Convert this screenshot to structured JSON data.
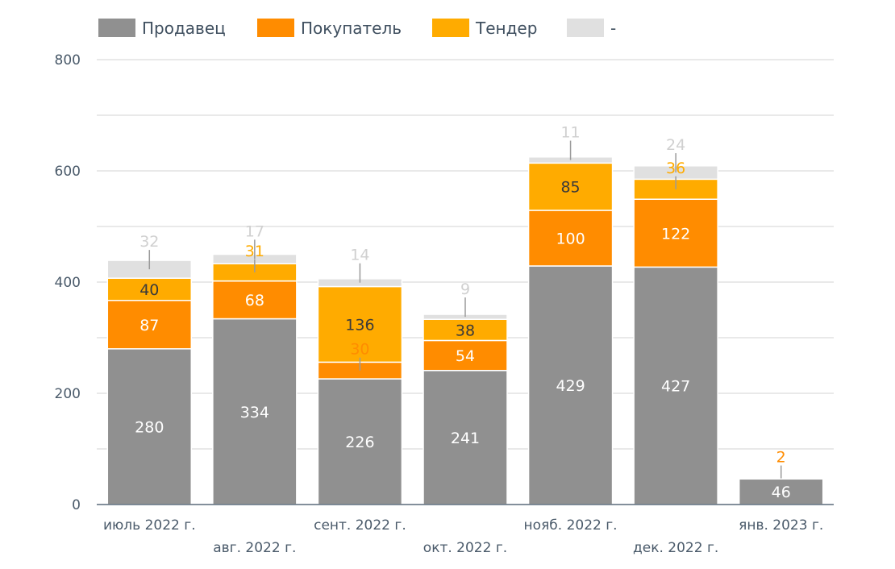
{
  "chart_data": {
    "type": "bar",
    "stacked": true,
    "categories": [
      "июль 2022 г.",
      "авг. 2022 г.",
      "сент. 2022 г.",
      "окт. 2022 г.",
      "нояб. 2022 г.",
      "дек. 2022 г.",
      "янв. 2023 г."
    ],
    "series": [
      {
        "name": "Продавец",
        "color": "#909090",
        "label_color": "#ffffff",
        "values": [
          280,
          334,
          226,
          241,
          429,
          427,
          46
        ]
      },
      {
        "name": "Покупатель",
        "color": "#ff8c00",
        "label_color": "#ffffff",
        "values": [
          87,
          68,
          30,
          54,
          100,
          122,
          2
        ]
      },
      {
        "name": "Тендер",
        "color": "#ffab00",
        "label_color": "#3a3a3a",
        "values": [
          40,
          31,
          136,
          38,
          85,
          36,
          0
        ]
      },
      {
        "name": "-",
        "color": "#e0e0e0",
        "label_color": "#d0d0d0",
        "values": [
          32,
          17,
          14,
          9,
          11,
          24,
          0
        ]
      }
    ],
    "ylim": [
      0,
      800
    ],
    "yticks": [
      0,
      200,
      400,
      600,
      800
    ],
    "yticks_labels": [
      "0",
      "200",
      "400",
      "600",
      "800"
    ],
    "grid": true,
    "legend_position": "top-left"
  }
}
